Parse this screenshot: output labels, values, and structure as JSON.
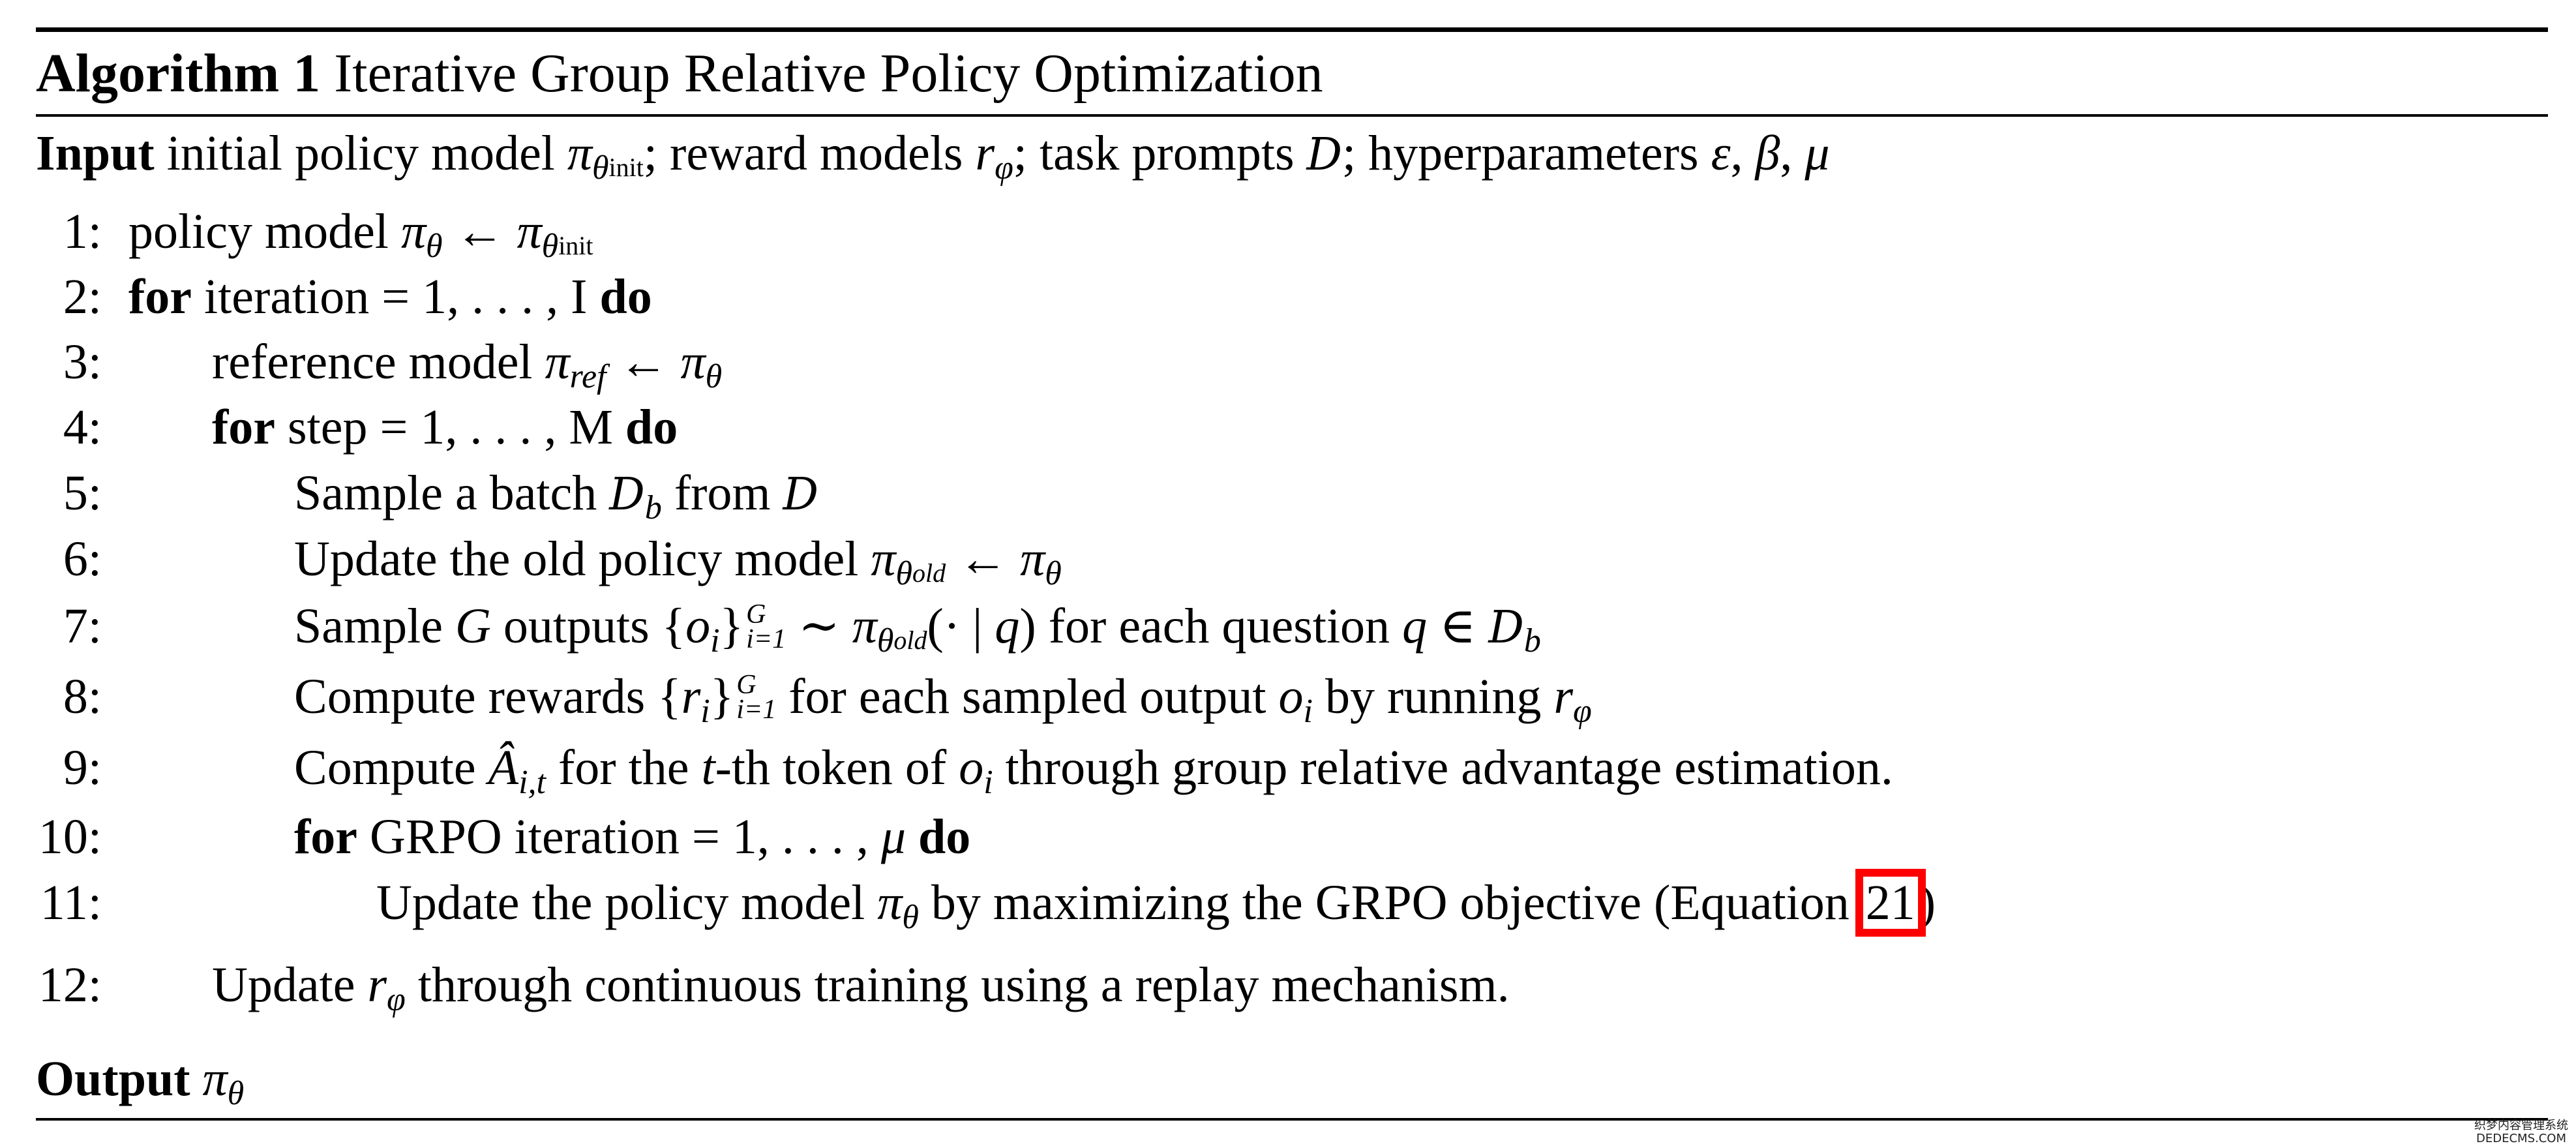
{
  "title": {
    "label": "Algorithm 1",
    "text": " Iterative Group Relative Policy Optimization"
  },
  "input": [
    {
      "t": "Input",
      "c": "b"
    },
    {
      "t": " initial policy model "
    },
    {
      "t": "π",
      "c": "i"
    },
    {
      "t": "θ",
      "c": "i sub"
    },
    {
      "t": "init",
      "c": "sub2"
    },
    {
      "t": "; reward models "
    },
    {
      "t": "r",
      "c": "i"
    },
    {
      "t": "φ",
      "c": "i sub"
    },
    {
      "t": "; task prompts "
    },
    {
      "t": "D",
      "c": "cal"
    },
    {
      "t": "; hyperparameters "
    },
    {
      "t": "ε",
      "c": "i"
    },
    {
      "t": ", "
    },
    {
      "t": "β",
      "c": "i"
    },
    {
      "t": ", "
    },
    {
      "t": "μ",
      "c": "i"
    }
  ],
  "steps": [
    {
      "n": "1:",
      "level": 0,
      "parts": [
        {
          "t": "policy model "
        },
        {
          "t": "π",
          "c": "i"
        },
        {
          "t": "θ",
          "c": "i sub"
        },
        {
          "t": " ← "
        },
        {
          "t": "π",
          "c": "i"
        },
        {
          "t": "θ",
          "c": "i sub"
        },
        {
          "t": "init",
          "c": "sub2"
        }
      ]
    },
    {
      "n": "2:",
      "level": 0,
      "parts": [
        {
          "t": "for",
          "c": "b"
        },
        {
          "t": " iteration = 1, . . . , I "
        },
        {
          "t": "do",
          "c": "b"
        }
      ]
    },
    {
      "n": "3:",
      "level": 1,
      "parts": [
        {
          "t": "reference model "
        },
        {
          "t": "π",
          "c": "i"
        },
        {
          "t": "ref",
          "c": "i sub"
        },
        {
          "t": " ← "
        },
        {
          "t": "π",
          "c": "i"
        },
        {
          "t": "θ",
          "c": "i sub"
        }
      ]
    },
    {
      "n": "4:",
      "level": 1,
      "parts": [
        {
          "t": "for",
          "c": "b"
        },
        {
          "t": " step = 1, . . . , M "
        },
        {
          "t": "do",
          "c": "b"
        }
      ]
    },
    {
      "n": "5:",
      "level": 2,
      "parts": [
        {
          "t": "Sample a batch "
        },
        {
          "t": "D",
          "c": "cal"
        },
        {
          "t": "b",
          "c": "i sub"
        },
        {
          "t": " from "
        },
        {
          "t": "D",
          "c": "cal"
        }
      ]
    },
    {
      "n": "6:",
      "level": 2,
      "parts": [
        {
          "t": "Update the old policy model "
        },
        {
          "t": "π",
          "c": "i"
        },
        {
          "t": "θ",
          "c": "i sub"
        },
        {
          "t": "old",
          "c": "i sub2"
        },
        {
          "t": " ← "
        },
        {
          "t": "π",
          "c": "i"
        },
        {
          "t": "θ",
          "c": "i sub"
        }
      ]
    },
    {
      "n": "7:",
      "level": 2,
      "parts": [
        {
          "t": "Sample "
        },
        {
          "t": "G",
          "c": "i"
        },
        {
          "t": " outputs {"
        },
        {
          "t": "o",
          "c": "i"
        },
        {
          "t": "i",
          "c": "i sub"
        },
        {
          "t": "}"
        },
        {
          "sup": "G",
          "sub": "i=1"
        },
        {
          "t": " ∼ "
        },
        {
          "t": "π",
          "c": "i"
        },
        {
          "t": "θ",
          "c": "i sub"
        },
        {
          "t": "old",
          "c": "i sub2"
        },
        {
          "t": "(· | "
        },
        {
          "t": "q",
          "c": "i"
        },
        {
          "t": ") for each question "
        },
        {
          "t": "q",
          "c": "i"
        },
        {
          "t": " ∈ "
        },
        {
          "t": "D",
          "c": "cal"
        },
        {
          "t": "b",
          "c": "i sub"
        }
      ]
    },
    {
      "n": "8:",
      "level": 2,
      "parts": [
        {
          "t": "Compute rewards {"
        },
        {
          "t": "r",
          "c": "i"
        },
        {
          "t": "i",
          "c": "i sub"
        },
        {
          "t": "}"
        },
        {
          "sup": "G",
          "sub": "i=1"
        },
        {
          "t": " for each sampled output "
        },
        {
          "t": "o",
          "c": "i"
        },
        {
          "t": "i",
          "c": "i sub"
        },
        {
          "t": " by running "
        },
        {
          "t": "r",
          "c": "i"
        },
        {
          "t": "φ",
          "c": "i sub"
        }
      ]
    },
    {
      "n": "9:",
      "level": 2,
      "parts": [
        {
          "t": "Compute "
        },
        {
          "t": "Â",
          "c": "i"
        },
        {
          "t": "i,t",
          "c": "i sub"
        },
        {
          "t": " for the "
        },
        {
          "t": "t",
          "c": "i"
        },
        {
          "t": "-th token of "
        },
        {
          "t": "o",
          "c": "i"
        },
        {
          "t": "i",
          "c": "i sub"
        },
        {
          "t": " through group relative advantage estimation."
        }
      ]
    },
    {
      "n": "10:",
      "level": 2,
      "parts": [
        {
          "t": "for",
          "c": "b"
        },
        {
          "t": " GRPO iteration = 1, . . . , "
        },
        {
          "t": "μ",
          "c": "i"
        },
        {
          "t": " "
        },
        {
          "t": "do",
          "c": "b"
        }
      ]
    },
    {
      "n": "11:",
      "level": 3,
      "parts": [
        {
          "t": "Update the policy model "
        },
        {
          "t": "π",
          "c": "i"
        },
        {
          "t": "θ",
          "c": "i sub"
        },
        {
          "t": " by maximizing the GRPO objective (Equation "
        },
        {
          "t": "21",
          "c": "hl",
          "link": true
        },
        {
          "t": ")"
        }
      ]
    },
    {
      "n": "12:",
      "level": 1,
      "parts": [
        {
          "t": "Update "
        },
        {
          "t": "r",
          "c": "i"
        },
        {
          "t": "φ",
          "c": "i sub"
        },
        {
          "t": " through continuous training using a replay mechanism."
        }
      ]
    }
  ],
  "output": [
    {
      "t": "Output",
      "c": "b"
    },
    {
      "t": " "
    },
    {
      "t": "π",
      "c": "i"
    },
    {
      "t": "θ",
      "c": "i sub"
    }
  ],
  "colors": {
    "link_box": "#ff0000",
    "text": "#000000"
  },
  "watermark": {
    "line1": "织梦内容管理系统",
    "line2": "DEDECMS.COM"
  }
}
